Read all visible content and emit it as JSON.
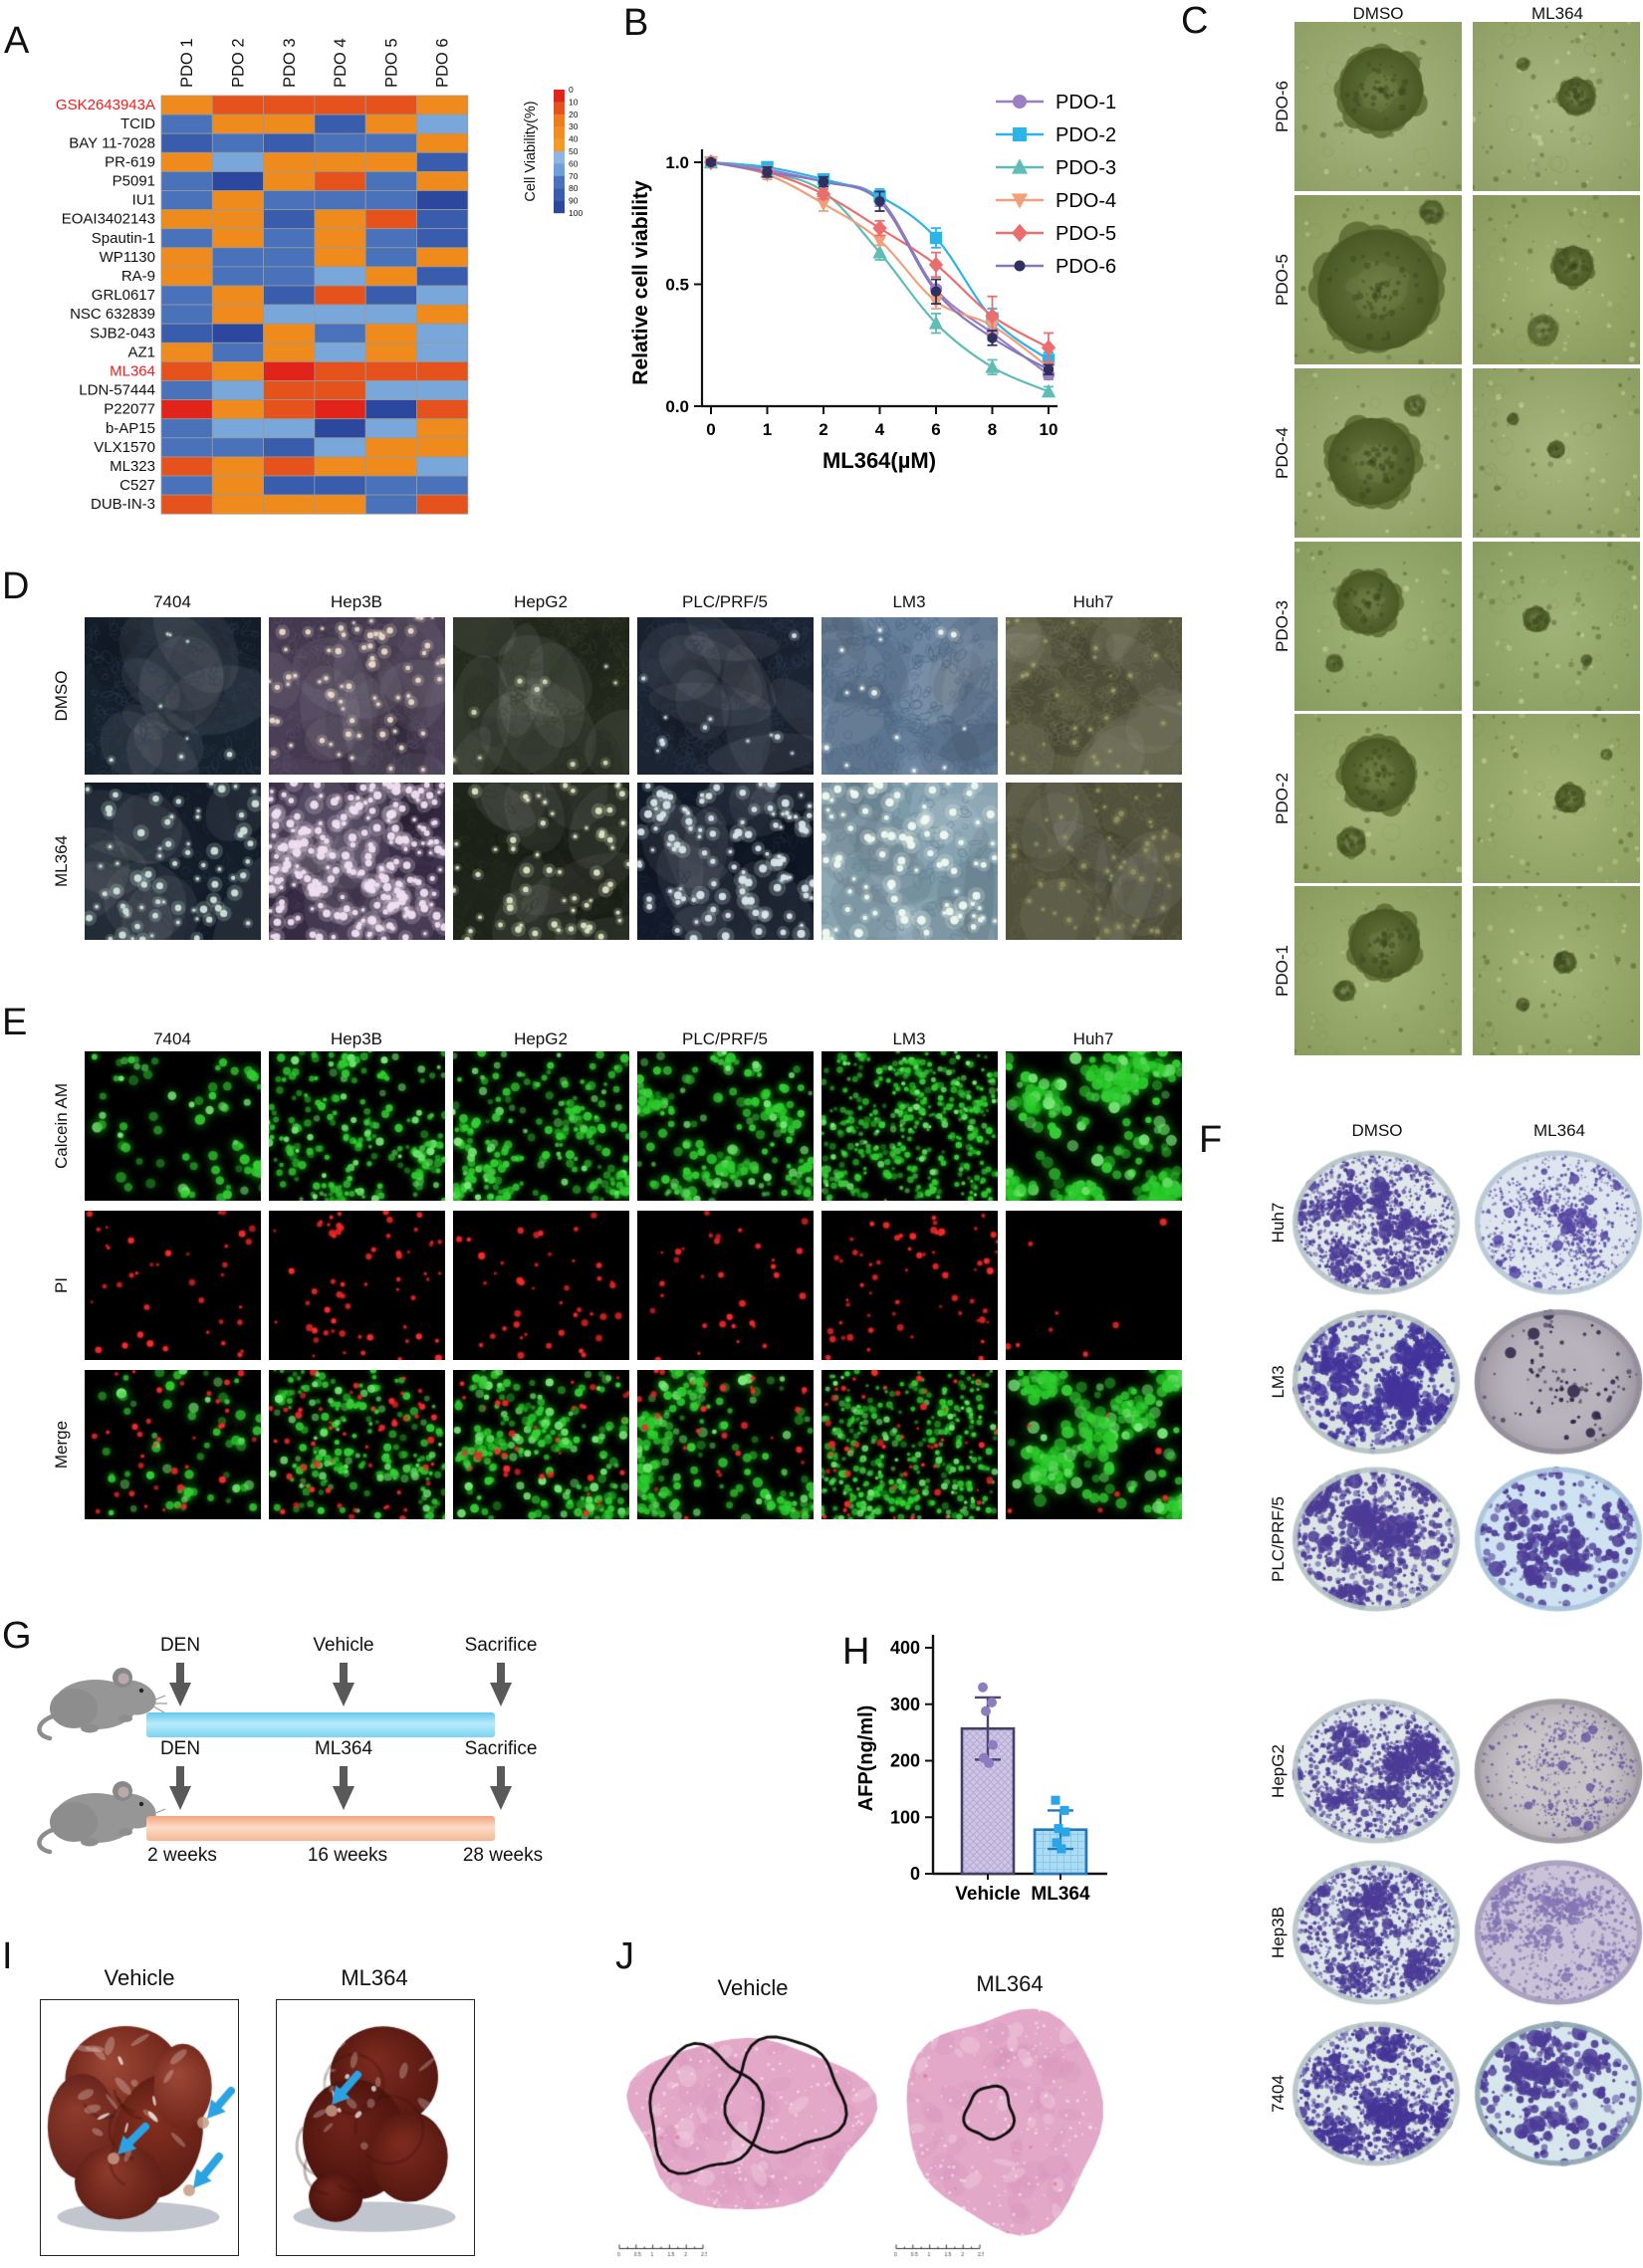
{
  "chart_data": [
    {
      "id": "drug_screen_heatmap",
      "type": "heatmap",
      "col_labels": [
        "PDO 1",
        "PDO 2",
        "PDO 3",
        "PDO 4",
        "PDO 5",
        "PDO 6"
      ],
      "row_labels": [
        "GSK2643943A",
        "TCID",
        "BAY 11-7028",
        "PR-619",
        "P5091",
        "IU1",
        "EOAI3402143",
        "Spautin-1",
        "WP1130",
        "RA-9",
        "GRL0617",
        "NSC 632839",
        "SJB2-043",
        "AZ1",
        "ML364",
        "LDN-57444",
        "P22077",
        "b-AP15",
        "VLX1570",
        "ML323",
        "C527",
        "DUB-IN-3"
      ],
      "highlighted_rows": [
        "GSK2643943A",
        "ML364"
      ],
      "highlight_color": "#ed1c1c",
      "values": [
        [
          35,
          15,
          18,
          20,
          15,
          30
        ],
        [
          70,
          35,
          35,
          78,
          35,
          55
        ],
        [
          85,
          70,
          80,
          70,
          70,
          30
        ],
        [
          35,
          55,
          35,
          33,
          35,
          85
        ],
        [
          70,
          92,
          35,
          16,
          70,
          38
        ],
        [
          68,
          35,
          70,
          72,
          72,
          88
        ],
        [
          35,
          33,
          85,
          35,
          20,
          82
        ],
        [
          70,
          35,
          68,
          35,
          72,
          80
        ],
        [
          35,
          65,
          75,
          35,
          68,
          30
        ],
        [
          35,
          76,
          70,
          58,
          35,
          85
        ],
        [
          68,
          35,
          85,
          20,
          82,
          58
        ],
        [
          75,
          35,
          58,
          58,
          58,
          35
        ],
        [
          80,
          90,
          35,
          68,
          35,
          55
        ],
        [
          30,
          72,
          35,
          58,
          32,
          55
        ],
        [
          15,
          32,
          3,
          14,
          15,
          16
        ],
        [
          68,
          55,
          20,
          20,
          58,
          58
        ],
        [
          8,
          32,
          15,
          5,
          88,
          18
        ],
        [
          72,
          58,
          58,
          88,
          58,
          35
        ],
        [
          68,
          70,
          78,
          58,
          22,
          22
        ],
        [
          20,
          26,
          18,
          32,
          32,
          55
        ],
        [
          68,
          28,
          85,
          85,
          72,
          70
        ],
        [
          18,
          30,
          33,
          35,
          70,
          10
        ]
      ],
      "legend": {
        "title": "Cell Viability(%)",
        "ticks": [
          0,
          10,
          20,
          30,
          40,
          50,
          60,
          70,
          80,
          90,
          100
        ],
        "segment_colors": [
          "#e2231a",
          "#e6511c",
          "#ef7d1d",
          "#f08d1e",
          "#f29a25",
          "#8fb4e0",
          "#6f9fd8",
          "#4a72bb",
          "#3a5cad",
          "#2b479e"
        ]
      },
      "colormap": [
        {
          "max": 8,
          "color": "#e2231a"
        },
        {
          "max": 21,
          "color": "#e5521c"
        },
        {
          "max": 45,
          "color": "#ef8b1d"
        },
        {
          "max": 62,
          "color": "#79a7d9"
        },
        {
          "max": 76,
          "color": "#4a72bb"
        },
        {
          "max": 86,
          "color": "#3a5cad"
        },
        {
          "max": 101,
          "color": "#2b479e"
        }
      ]
    },
    {
      "id": "dose_response",
      "type": "line",
      "xlabel": "ML364(µM)",
      "ylabel": "Relative cell viability",
      "x_ticks": [
        "0",
        "1",
        "2",
        "4",
        "6",
        "8",
        "10"
      ],
      "y_ticks": [
        "0.0",
        "0.5",
        "1.0"
      ],
      "ylim": [
        0,
        1.05
      ],
      "legend_position": "right",
      "series": [
        {
          "name": "PDO-1",
          "color": "#9b7fc4",
          "marker": "circle",
          "values": [
            1.0,
            0.97,
            0.92,
            0.85,
            0.48,
            0.3,
            0.13
          ],
          "errors": [
            0.01,
            0.02,
            0.02,
            0.03,
            0.04,
            0.03,
            0.02
          ]
        },
        {
          "name": "PDO-2",
          "color": "#2cb3e8",
          "marker": "square",
          "values": [
            1.0,
            0.98,
            0.93,
            0.86,
            0.69,
            0.36,
            0.19
          ],
          "errors": [
            0.01,
            0.01,
            0.02,
            0.03,
            0.04,
            0.04,
            0.03
          ]
        },
        {
          "name": "PDO-3",
          "color": "#5fbdb5",
          "marker": "tri-up",
          "values": [
            1.0,
            0.96,
            0.88,
            0.63,
            0.34,
            0.16,
            0.06
          ],
          "errors": [
            0.01,
            0.02,
            0.02,
            0.03,
            0.04,
            0.03,
            0.02
          ]
        },
        {
          "name": "PDO-4",
          "color": "#f2a07c",
          "marker": "tri-down",
          "values": [
            1.0,
            0.95,
            0.83,
            0.68,
            0.43,
            0.33,
            0.16
          ],
          "errors": [
            0.01,
            0.02,
            0.03,
            0.02,
            0.03,
            0.03,
            0.02
          ]
        },
        {
          "name": "PDO-5",
          "color": "#ec6d6d",
          "marker": "diamond",
          "values": [
            1.0,
            0.96,
            0.87,
            0.73,
            0.58,
            0.37,
            0.24
          ],
          "errors": [
            0.01,
            0.01,
            0.02,
            0.03,
            0.05,
            0.08,
            0.06
          ]
        },
        {
          "name": "PDO-6",
          "color": "#8578bf",
          "marker_color": "#2f3060",
          "marker": "circle",
          "values": [
            1.0,
            0.96,
            0.92,
            0.84,
            0.47,
            0.28,
            0.15
          ],
          "errors": [
            0.01,
            0.02,
            0.02,
            0.04,
            0.05,
            0.03,
            0.02
          ]
        }
      ]
    },
    {
      "id": "afp",
      "type": "bar",
      "ylabel": "AFP(ng/ml)",
      "y_ticks": [
        0,
        100,
        200,
        300,
        400
      ],
      "ylim": [
        0,
        400
      ],
      "categories": [
        "Vehicle",
        "ML364"
      ],
      "values": [
        257,
        78
      ],
      "errors": [
        55,
        34
      ],
      "points": [
        [
          330,
          303,
          288,
          228,
          205,
          196
        ],
        [
          130,
          112,
          80,
          74,
          55,
          44
        ]
      ],
      "bar_fill": [
        "#cfc6e4",
        "#abdcf4"
      ],
      "bar_edge": [
        "#423f66",
        "#2478b8"
      ],
      "point_colors": [
        "#8d7cc0",
        "#2aa6e8"
      ]
    }
  ],
  "panel_a": {
    "label": "A"
  },
  "panel_b": {
    "label": "B"
  },
  "panel_c": {
    "label": "C",
    "col_headers": [
      "DMSO",
      "ML364"
    ],
    "row_labels": [
      "PDO-6",
      "PDO-5",
      "PDO-4",
      "PDO-3",
      "PDO-2",
      "PDO-1"
    ]
  },
  "panel_d": {
    "label": "D",
    "col_headers": [
      "7404",
      "Hep3B",
      "HepG2",
      "PLC/PRF/5",
      "LM3",
      "Huh7"
    ],
    "row_labels": [
      "DMSO",
      "ML364"
    ]
  },
  "panel_e": {
    "label": "E",
    "col_headers": [
      "7404",
      "Hep3B",
      "HepG2",
      "PLC/PRF/5",
      "LM3",
      "Huh7"
    ],
    "row_labels": [
      "Calcein AM",
      "PI",
      "Merge"
    ]
  },
  "panel_f": {
    "label": "F",
    "col_headers": [
      "DMSO",
      "ML364"
    ],
    "row_labels": [
      "Huh7",
      "LM3",
      "PLC/PRF/5",
      "HepG2",
      "Hep3B",
      "7404"
    ]
  },
  "panel_g": {
    "label": "G",
    "top_row": [
      "DEN",
      "Vehicle",
      "Sacrifice"
    ],
    "bottom_row": [
      "DEN",
      "ML364",
      "Sacrifice"
    ],
    "timeline": [
      "2 weeks",
      "16 weeks",
      "28 weeks"
    ]
  },
  "panel_h": {
    "label": "H"
  },
  "panel_i": {
    "label": "I",
    "titles": [
      "Vehicle",
      "ML364"
    ]
  },
  "panel_j": {
    "label": "J",
    "titles": [
      "Vehicle",
      "ML364"
    ],
    "scale_ticks": [
      "0",
      "0.5",
      "1",
      "1.5",
      "2",
      "2.5mm"
    ]
  }
}
